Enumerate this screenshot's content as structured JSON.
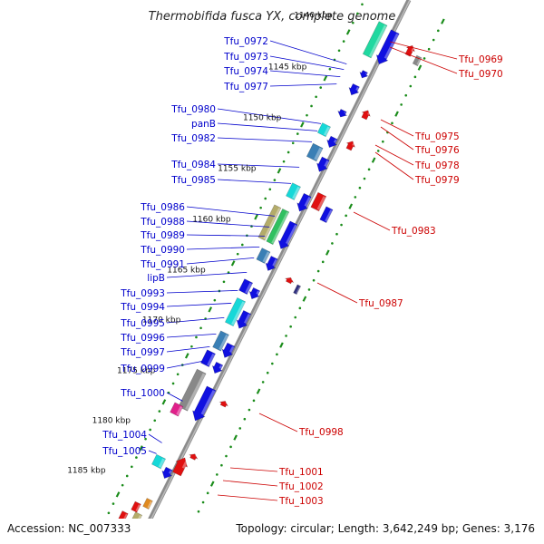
{
  "title": "Thermobifida fusca YX, complete genome",
  "accession": "Accession: NC_007333",
  "topology": "Topology: circular; Length: 3,642,249 bp; Genes: 3,176",
  "colors": {
    "backbone": "#8c8c8c",
    "left_label": "#0000cc",
    "right_label": "#cc0000",
    "tick_dot": "#1a8c1a",
    "gene_blue": "#1010e0",
    "gene_cyan": "#16d8d8",
    "gene_red": "#e01010",
    "gene_gray": "#888888",
    "gene_pink": "#e0208a",
    "gene_green": "#30c060",
    "gene_teal": "#20d8a0",
    "gene_steel": "#3a7fb5",
    "gene_khaki": "#b4ac6a",
    "gene_navy": "#303080",
    "gene_orange": "#e08a20"
  },
  "kbp_labels": [
    "1140 kbp",
    "1145 kbp",
    "1150 kbp",
    "1155 kbp",
    "1160 kbp",
    "1165 kbp",
    "1170 kbp",
    "1175 kbp",
    "1180 kbp",
    "1185 kbp"
  ],
  "left_genes": [
    "Tfu_0972",
    "Tfu_0973",
    "Tfu_0974",
    "Tfu_0977",
    "Tfu_0980",
    "panB",
    "Tfu_0982",
    "Tfu_0984",
    "Tfu_0985",
    "Tfu_0986",
    "Tfu_0988",
    "Tfu_0989",
    "Tfu_0990",
    "Tfu_0991",
    "lipB",
    "Tfu_0993",
    "Tfu_0994",
    "Tfu_0995",
    "Tfu_0996",
    "Tfu_0997",
    "Tfu_0999",
    "Tfu_1000",
    "Tfu_1004",
    "Tfu_1005"
  ],
  "right_genes": [
    "Tfu_0969",
    "Tfu_0970",
    "Tfu_0975",
    "Tfu_0976",
    "Tfu_0978",
    "Tfu_0979",
    "Tfu_0983",
    "Tfu_0987",
    "Tfu_0998",
    "Tfu_1001",
    "Tfu_1002",
    "Tfu_1003"
  ]
}
